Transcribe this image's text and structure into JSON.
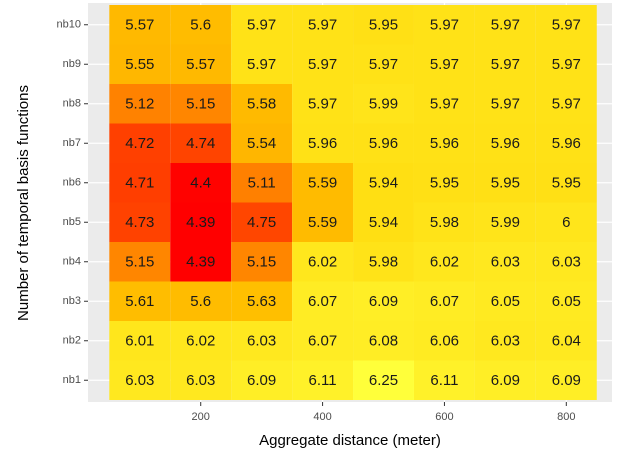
{
  "chart_data": {
    "type": "heatmap",
    "x_label": "Aggregate distance (meter)",
    "y_label": "Number of temporal basis functions",
    "x": [
      100,
      200,
      300,
      400,
      500,
      600,
      700,
      800
    ],
    "y_categories": [
      "nb1",
      "nb2",
      "nb3",
      "nb4",
      "nb5",
      "nb6",
      "nb7",
      "nb8",
      "nb9",
      "nb10"
    ],
    "values": [
      [
        6.03,
        6.03,
        6.09,
        6.11,
        6.25,
        6.11,
        6.09,
        6.09
      ],
      [
        6.01,
        6.02,
        6.03,
        6.07,
        6.08,
        6.06,
        6.03,
        6.04
      ],
      [
        5.61,
        5.6,
        5.63,
        6.07,
        6.09,
        6.07,
        6.05,
        6.05
      ],
      [
        5.15,
        4.39,
        5.15,
        6.02,
        5.98,
        6.02,
        6.03,
        6.03
      ],
      [
        4.73,
        4.39,
        4.75,
        5.59,
        5.94,
        5.98,
        5.99,
        6
      ],
      [
        4.71,
        4.4,
        5.11,
        5.59,
        5.94,
        5.95,
        5.95,
        5.95
      ],
      [
        4.72,
        4.74,
        5.54,
        5.96,
        5.96,
        5.96,
        5.96,
        5.96
      ],
      [
        5.12,
        5.15,
        5.58,
        5.97,
        5.99,
        5.97,
        5.97,
        5.97
      ],
      [
        5.55,
        5.57,
        5.97,
        5.97,
        5.97,
        5.97,
        5.97,
        5.97
      ],
      [
        5.57,
        5.6,
        5.97,
        5.97,
        5.95,
        5.97,
        5.97,
        5.97
      ]
    ],
    "colors": [
      "#ff0000",
      "#ff5a00",
      "#ffa000",
      "#ffcf00",
      "#ffff3a"
    ],
    "xlim": [
      15,
      875
    ],
    "xticks": [
      200,
      400,
      600,
      800
    ],
    "grid": true
  }
}
